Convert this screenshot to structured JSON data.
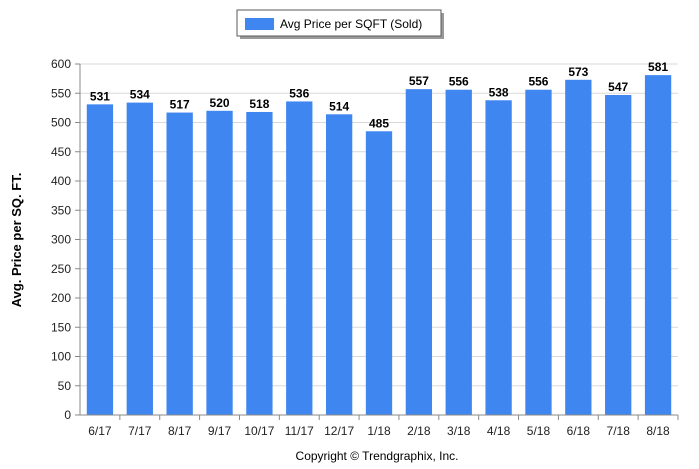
{
  "chart_data": {
    "type": "bar",
    "categories": [
      "6/17",
      "7/17",
      "8/17",
      "9/17",
      "10/17",
      "11/17",
      "12/17",
      "1/18",
      "2/18",
      "3/18",
      "4/18",
      "5/18",
      "6/18",
      "7/18",
      "8/18"
    ],
    "series": [
      {
        "name": "Avg Price per SQFT (Sold)",
        "values": [
          531,
          534,
          517,
          520,
          518,
          536,
          514,
          485,
          557,
          556,
          538,
          556,
          573,
          547,
          581
        ],
        "color": "#3f86f0"
      }
    ],
    "xlabel": "",
    "ylabel": "Avg. Price per SQ. FT.",
    "ylim": [
      0,
      600
    ],
    "yticks": [
      0,
      50,
      100,
      150,
      200,
      250,
      300,
      350,
      400,
      450,
      500,
      550,
      600
    ],
    "grid": true,
    "legend_position": "top-center",
    "data_labels": true
  },
  "footer": {
    "copyright": "Copyright © Trendgraphix, Inc."
  },
  "colors": {
    "bar": "#3f86f0",
    "grid": "#d9d9d9",
    "axis": "#888888"
  }
}
